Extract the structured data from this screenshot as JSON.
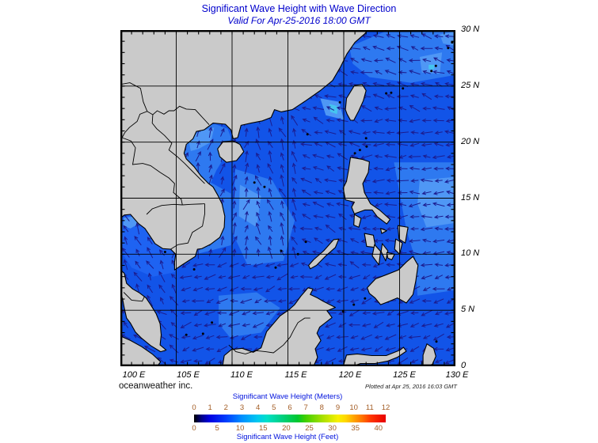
{
  "title": "Significant Wave Height with Wave Direction",
  "subtitle": "Valid For Apr-25-2016 18:00 GMT",
  "footer": {
    "left": "oceanweather inc.",
    "right": "Plotted at Apr 25, 2016 16:03 GMT"
  },
  "map": {
    "lon_range": [
      100,
      130
    ],
    "lat_range": [
      0,
      30
    ],
    "lat_labels": [
      "30 N",
      "25 N",
      "20 N",
      "15 N",
      "10 N",
      "5 N",
      "0"
    ],
    "lon_labels": [
      "100 E",
      "105 E",
      "110 E",
      "115 E",
      "120 E",
      "125 E",
      "130 E"
    ],
    "sea_color": "#1254e8",
    "land_color": "#cacaca",
    "coast_color": "#000000",
    "grid_color": "#000000",
    "arrow_color": "#1c1c8f",
    "patch_colors": {
      "shade1": "#2e79f0",
      "shade2": "#4f97f5",
      "cyan": "#45c4f0",
      "gulf": "#1e63f2"
    },
    "wave_zones": [
      {
        "name": "north-of-22N",
        "lon": [
          100,
          130
        ],
        "lat": [
          22,
          30
        ],
        "toward": 285
      },
      {
        "name": "vietnam-coast-tonkin",
        "lon": [
          104,
          112
        ],
        "lat": [
          10,
          22
        ],
        "toward": 15
      },
      {
        "name": "central-scs-west",
        "lon": [
          112,
          116.5
        ],
        "lat": [
          10,
          22
        ],
        "toward": 340
      },
      {
        "name": "central-scs-east",
        "lon": [
          116.5,
          121
        ],
        "lat": [
          8,
          22
        ],
        "toward": 290
      },
      {
        "name": "pacific-east-of-philippines",
        "lon": [
          121,
          130
        ],
        "lat": [
          8,
          22
        ],
        "toward": 268
      },
      {
        "name": "gulf-of-thailand",
        "lon": [
          100,
          105.5
        ],
        "lat": [
          5.5,
          13.5
        ],
        "toward": 330
      },
      {
        "name": "south-scs",
        "lon": [
          105.5,
          121
        ],
        "lat": [
          2,
          10
        ],
        "toward": 255
      },
      {
        "name": "sulu-celebes",
        "lon": [
          105.5,
          130
        ],
        "lat": [
          0,
          8
        ],
        "toward": 252
      },
      {
        "name": "malacca-equator",
        "lon": [
          100,
          105.5
        ],
        "lat": [
          0,
          5.5
        ],
        "toward": 305
      },
      {
        "name": "default",
        "lon": [
          100,
          130
        ],
        "lat": [
          0,
          30
        ],
        "toward": 315
      }
    ]
  },
  "colorbar": {
    "title_meters": "Significant Wave Height (Meters)",
    "title_feet": "Significant Wave Height (Feet)",
    "meters_ticks": [
      "0",
      "1",
      "2",
      "3",
      "4",
      "5",
      "6",
      "7",
      "8",
      "9",
      "10",
      "11",
      "12"
    ],
    "feet_ticks": [
      "0",
      "5",
      "10",
      "15",
      "20",
      "25",
      "30",
      "35",
      "40"
    ],
    "tick_color": "#a35d25",
    "label_color": "#0012dd",
    "stops": [
      {
        "p": 0,
        "c": "#000000"
      },
      {
        "p": 4,
        "c": "#00008b"
      },
      {
        "p": 8,
        "c": "#0000e0"
      },
      {
        "p": 17,
        "c": "#0040ff"
      },
      {
        "p": 25,
        "c": "#0090ff"
      },
      {
        "p": 33,
        "c": "#00c8f0"
      },
      {
        "p": 38,
        "c": "#00e0c8"
      },
      {
        "p": 46,
        "c": "#00d080"
      },
      {
        "p": 54,
        "c": "#00c830"
      },
      {
        "p": 58,
        "c": "#40d000"
      },
      {
        "p": 67,
        "c": "#a8e000"
      },
      {
        "p": 75,
        "c": "#f8f000"
      },
      {
        "p": 79,
        "c": "#ffd800"
      },
      {
        "p": 83,
        "c": "#ffa800"
      },
      {
        "p": 88,
        "c": "#ff7000"
      },
      {
        "p": 92,
        "c": "#ff3800"
      },
      {
        "p": 100,
        "c": "#e80000"
      }
    ]
  }
}
